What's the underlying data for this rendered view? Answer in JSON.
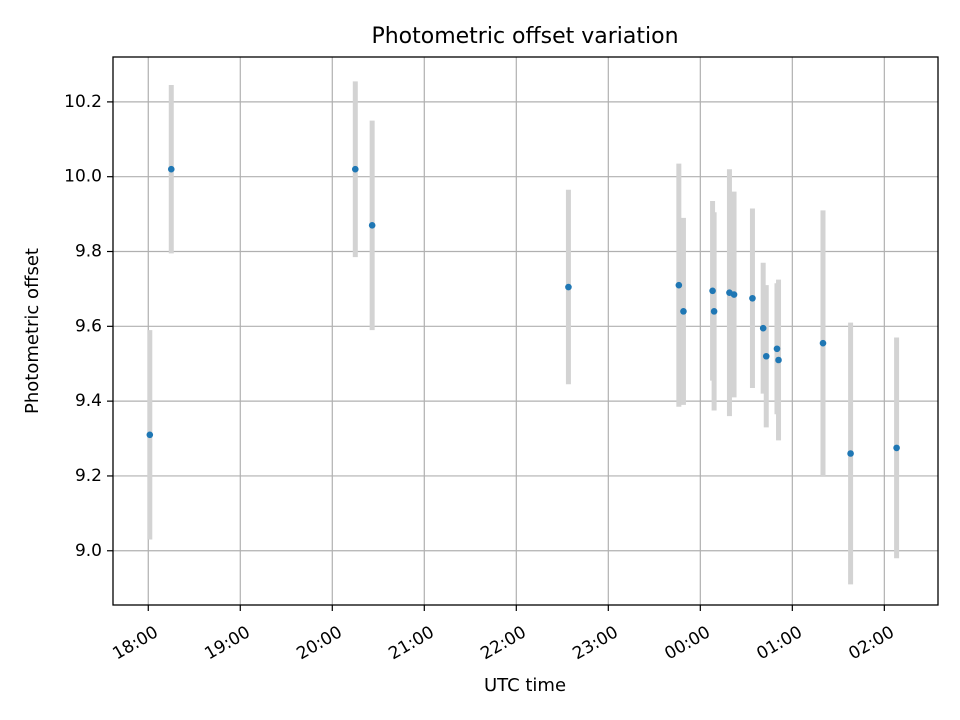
{
  "chart_data": {
    "type": "scatter",
    "title": "Photometric offset variation",
    "xlabel": "UTC time",
    "ylabel": "Photometric offset",
    "x_type": "time",
    "xlim": [
      "17:37",
      "02:35"
    ],
    "ylim": [
      8.855,
      10.32
    ],
    "x_ticks": [
      "18:00",
      "19:00",
      "20:00",
      "21:00",
      "22:00",
      "23:00",
      "00:00",
      "01:00",
      "02:00"
    ],
    "y_ticks": [
      9.0,
      9.2,
      9.4,
      9.6,
      9.8,
      10.0,
      10.2
    ],
    "grid": true,
    "legend": "none",
    "colors": {
      "marker": "#1f77b4",
      "errorbar": "#d3d3d3"
    },
    "points": [
      {
        "x": "18:01",
        "y": 9.31,
        "err": 0.28
      },
      {
        "x": "18:15",
        "y": 10.02,
        "err": 0.225
      },
      {
        "x": "20:15",
        "y": 10.02,
        "err": 0.235
      },
      {
        "x": "20:26",
        "y": 9.87,
        "err": 0.28
      },
      {
        "x": "22:34",
        "y": 9.705,
        "err": 0.26
      },
      {
        "x": "23:46",
        "y": 9.71,
        "err": 0.325
      },
      {
        "x": "23:49",
        "y": 9.64,
        "err": 0.25
      },
      {
        "x": "00:08",
        "y": 9.695,
        "err": 0.24
      },
      {
        "x": "00:09",
        "y": 9.64,
        "err": 0.265
      },
      {
        "x": "00:19",
        "y": 9.69,
        "err": 0.33
      },
      {
        "x": "00:22",
        "y": 9.685,
        "err": 0.275
      },
      {
        "x": "00:34",
        "y": 9.675,
        "err": 0.24
      },
      {
        "x": "00:41",
        "y": 9.595,
        "err": 0.175
      },
      {
        "x": "00:43",
        "y": 9.52,
        "err": 0.19
      },
      {
        "x": "00:50",
        "y": 9.54,
        "err": 0.175
      },
      {
        "x": "00:51",
        "y": 9.51,
        "err": 0.215
      },
      {
        "x": "01:20",
        "y": 9.555,
        "err": 0.355
      },
      {
        "x": "01:38",
        "y": 9.26,
        "err": 0.35
      },
      {
        "x": "02:08",
        "y": 9.275,
        "err": 0.295
      }
    ]
  }
}
